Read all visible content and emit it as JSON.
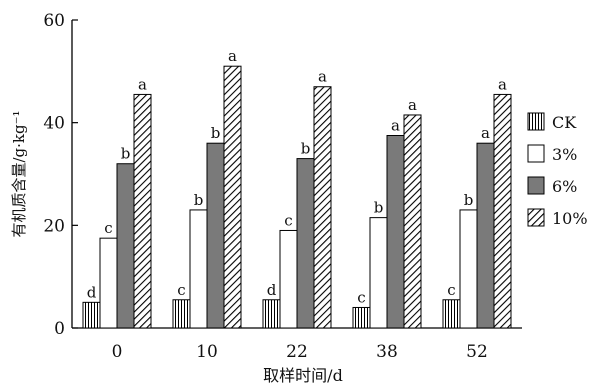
{
  "chart_data": {
    "type": "bar",
    "title": "",
    "xlabel": "取样时间/d",
    "ylabel": "有机质含量/g·kg⁻¹",
    "ylim": [
      0,
      60
    ],
    "yticks": [
      "0",
      "20",
      "40",
      "60"
    ],
    "categories": [
      "0",
      "10",
      "22",
      "38",
      "52"
    ],
    "legend_position": "right",
    "series": [
      {
        "name": "CK",
        "pattern": "vertical-lines",
        "values": [
          5,
          5.5,
          5.5,
          4,
          5.5
        ],
        "labels": [
          "d",
          "c",
          "d",
          "c",
          "c"
        ]
      },
      {
        "name": "3%",
        "pattern": "white",
        "values": [
          17.5,
          23,
          19,
          21.5,
          23
        ],
        "labels": [
          "c",
          "b",
          "c",
          "b",
          "b"
        ]
      },
      {
        "name": "6%",
        "pattern": "gray",
        "values": [
          32,
          36,
          33,
          37.5,
          36
        ],
        "labels": [
          "b",
          "b",
          "b",
          "a",
          "a"
        ]
      },
      {
        "name": "10%",
        "pattern": "diagonal-lines",
        "values": [
          45.5,
          51,
          47,
          41.5,
          45.5
        ],
        "labels": [
          "a",
          "a",
          "a",
          "a",
          "a"
        ]
      }
    ]
  }
}
